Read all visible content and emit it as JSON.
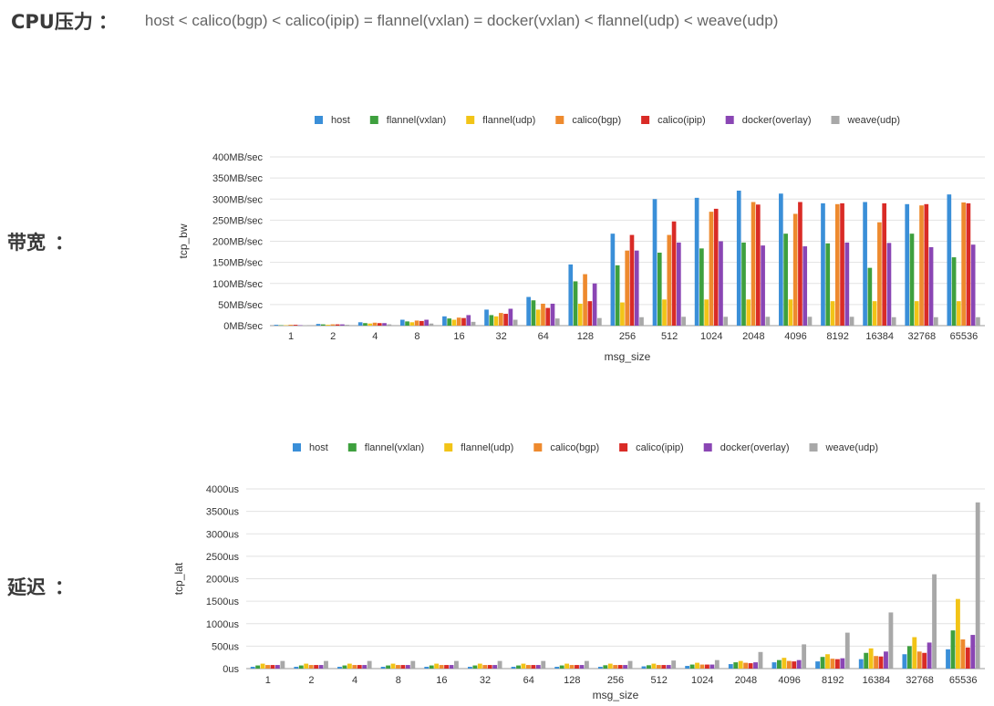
{
  "header": {
    "cpu_label": "CPU压力",
    "separator": "：",
    "cpu_ranking": "host < calico(bgp) < calico(ipip) = flannel(vxlan) = docker(vxlan) < flannel(udp) < weave(udp)"
  },
  "sections": {
    "bandwidth_label": "带宽",
    "latency_label": "延迟",
    "separator": "："
  },
  "colors": {
    "host": "#3a8fd8",
    "flannel(vxlan)": "#3ea03e",
    "flannel(udp)": "#f2c417",
    "calico(bgp)": "#ee8a2e",
    "calico(ipip)": "#d92b26",
    "docker(overlay)": "#8a46b4",
    "weave(udp)": "#a8a8a8"
  },
  "chart_data": [
    {
      "type": "bar",
      "ylabel": "tcp_bw",
      "xlabel": "msg_size",
      "ylim": [
        0,
        400
      ],
      "y_ticks": [
        0,
        50,
        100,
        150,
        200,
        250,
        300,
        350,
        400
      ],
      "y_tick_labels": [
        "0MB/sec",
        "50MB/sec",
        "100MB/sec",
        "150MB/sec",
        "200MB/sec",
        "250MB/sec",
        "300MB/sec",
        "350MB/sec",
        "400MB/sec"
      ],
      "grid": true,
      "legend_position": "top",
      "categories": [
        "1",
        "2",
        "4",
        "8",
        "16",
        "32",
        "64",
        "128",
        "256",
        "512",
        "1024",
        "2048",
        "4096",
        "8192",
        "16384",
        "32768",
        "65536"
      ],
      "series": [
        {
          "name": "host",
          "values": [
            2,
            4,
            8,
            14,
            22,
            38,
            68,
            145,
            218,
            300,
            303,
            320,
            313,
            290,
            293,
            288,
            311
          ]
        },
        {
          "name": "flannel(vxlan)",
          "values": [
            1,
            3,
            6,
            10,
            17,
            25,
            60,
            105,
            143,
            173,
            183,
            197,
            218,
            195,
            137,
            218,
            162
          ]
        },
        {
          "name": "flannel(udp)",
          "values": [
            1,
            2,
            5,
            8,
            14,
            22,
            38,
            52,
            55,
            62,
            62,
            62,
            62,
            58,
            58,
            58,
            58
          ]
        },
        {
          "name": "calico(bgp)",
          "values": [
            2,
            3,
            7,
            12,
            19,
            30,
            52,
            122,
            178,
            215,
            270,
            293,
            265,
            288,
            245,
            285,
            292
          ]
        },
        {
          "name": "calico(ipip)",
          "values": [
            2,
            3,
            6,
            11,
            18,
            28,
            42,
            58,
            215,
            247,
            277,
            287,
            293,
            290,
            290,
            288,
            290
          ]
        },
        {
          "name": "docker(overlay)",
          "values": [
            1,
            3,
            6,
            14,
            25,
            40,
            52,
            100,
            178,
            197,
            200,
            190,
            188,
            197,
            196,
            186,
            192
          ]
        },
        {
          "name": "weave(udp)",
          "values": [
            1,
            2,
            3,
            5,
            9,
            14,
            17,
            18,
            20,
            21,
            21,
            21,
            21,
            21,
            20,
            20,
            20
          ]
        }
      ]
    },
    {
      "type": "bar",
      "ylabel": "tcp_lat",
      "xlabel": "msg_size",
      "ylim": [
        0,
        4000
      ],
      "y_ticks": [
        0,
        500,
        1000,
        1500,
        2000,
        2500,
        3000,
        3500,
        4000
      ],
      "y_tick_labels": [
        "0us",
        "500us",
        "1000us",
        "1500us",
        "2000us",
        "2500us",
        "3000us",
        "3500us",
        "4000us"
      ],
      "grid": true,
      "legend_position": "top",
      "categories": [
        "1",
        "2",
        "4",
        "8",
        "16",
        "32",
        "64",
        "128",
        "256",
        "512",
        "1024",
        "2048",
        "4096",
        "8192",
        "16384",
        "32768",
        "65536"
      ],
      "series": [
        {
          "name": "host",
          "values": [
            40,
            40,
            40,
            40,
            40,
            40,
            40,
            40,
            40,
            50,
            60,
            100,
            140,
            160,
            210,
            320,
            430
          ]
        },
        {
          "name": "flannel(vxlan)",
          "values": [
            70,
            70,
            70,
            70,
            70,
            70,
            70,
            70,
            75,
            75,
            90,
            140,
            190,
            260,
            350,
            500,
            850
          ]
        },
        {
          "name": "flannel(udp)",
          "values": [
            110,
            110,
            110,
            110,
            110,
            110,
            110,
            110,
            110,
            110,
            130,
            170,
            240,
            320,
            450,
            700,
            1550
          ]
        },
        {
          "name": "calico(bgp)",
          "values": [
            80,
            80,
            80,
            80,
            80,
            80,
            80,
            80,
            80,
            80,
            90,
            130,
            170,
            220,
            280,
            380,
            650
          ]
        },
        {
          "name": "calico(ipip)",
          "values": [
            80,
            80,
            80,
            80,
            80,
            80,
            80,
            80,
            80,
            80,
            90,
            120,
            160,
            210,
            270,
            350,
            470
          ]
        },
        {
          "name": "docker(overlay)",
          "values": [
            80,
            80,
            80,
            80,
            80,
            80,
            80,
            80,
            80,
            80,
            90,
            140,
            190,
            230,
            380,
            580,
            750
          ]
        },
        {
          "name": "weave(udp)",
          "values": [
            170,
            170,
            170,
            170,
            170,
            170,
            170,
            170,
            170,
            180,
            190,
            370,
            540,
            800,
            1250,
            2100,
            3700
          ]
        }
      ]
    }
  ]
}
